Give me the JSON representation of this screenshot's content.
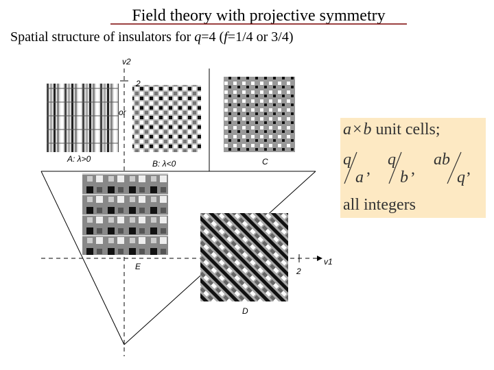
{
  "header": {
    "title": "Field theory with projective symmetry",
    "subtitle": {
      "before": "Spatial structure of insulators for ",
      "q": "q",
      "mid": "=4 (",
      "f": "f",
      "after": "=1/4 or 3/4)"
    }
  },
  "figure": {
    "y_axis": "v2",
    "y_tick": "2",
    "or": "or",
    "x_axis": "v1",
    "x_tick": "2",
    "panels": {
      "A": "A: λ>0",
      "B": "B: λ<0",
      "C": "C",
      "E": "E",
      "D": "D"
    }
  },
  "box": {
    "line1": {
      "a": "a",
      "times": "×",
      "b": "b",
      "rest": "unit cells;"
    },
    "fractions": [
      {
        "num": "q",
        "den": "a"
      },
      {
        "num": "q",
        "den": "b"
      },
      {
        "num": "ab",
        "den": "q"
      }
    ],
    "separator": ",",
    "line3": "all integers"
  }
}
